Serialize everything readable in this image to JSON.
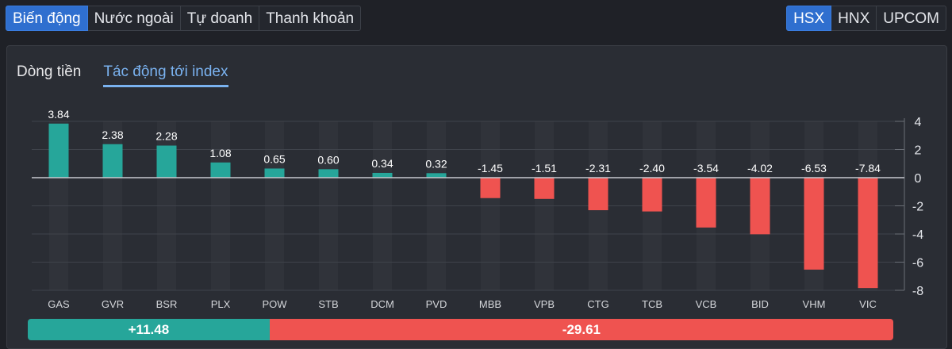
{
  "tabs": [
    {
      "label": "Biến động",
      "active": true
    },
    {
      "label": "Nước ngoài",
      "active": false
    },
    {
      "label": "Tự doanh",
      "active": false
    },
    {
      "label": "Thanh khoản",
      "active": false
    }
  ],
  "exchanges": [
    {
      "label": "HSX",
      "active": true
    },
    {
      "label": "HNX",
      "active": false
    },
    {
      "label": "UPCOM",
      "active": false
    }
  ],
  "subtabs": [
    {
      "label": "Dòng tiền",
      "active": false
    },
    {
      "label": "Tác động tới index",
      "active": true
    }
  ],
  "colors": {
    "positive": "#26a69a",
    "negative": "#ef5350",
    "accent": "#2f6fcf"
  },
  "chart_data": {
    "type": "bar",
    "categories": [
      "GAS",
      "GVR",
      "BSR",
      "PLX",
      "POW",
      "STB",
      "DCM",
      "PVD",
      "MBB",
      "VPB",
      "CTG",
      "TCB",
      "VCB",
      "BID",
      "VHM",
      "VIC"
    ],
    "values": [
      3.84,
      2.38,
      2.28,
      1.08,
      0.65,
      0.6,
      0.34,
      0.32,
      -1.45,
      -1.51,
      -2.31,
      -2.4,
      -3.54,
      -4.02,
      -6.53,
      -7.84
    ],
    "value_labels": [
      "3.84",
      "2.38",
      "2.28",
      "1.08",
      "0.65",
      "0.60",
      "0.34",
      "0.32",
      "-1.45",
      "-1.51",
      "-2.31",
      "-2.40",
      "-3.54",
      "-4.02",
      "-6.53",
      "-7.84"
    ],
    "yticks": [
      4,
      2,
      0,
      -2,
      -4,
      -6,
      -8
    ],
    "ylim": [
      -8,
      4
    ],
    "y_axis_side": "right",
    "grid": true
  },
  "summary": {
    "positive": "+11.48",
    "negative": "-29.61",
    "positive_value": 11.48,
    "negative_value": 29.61
  }
}
